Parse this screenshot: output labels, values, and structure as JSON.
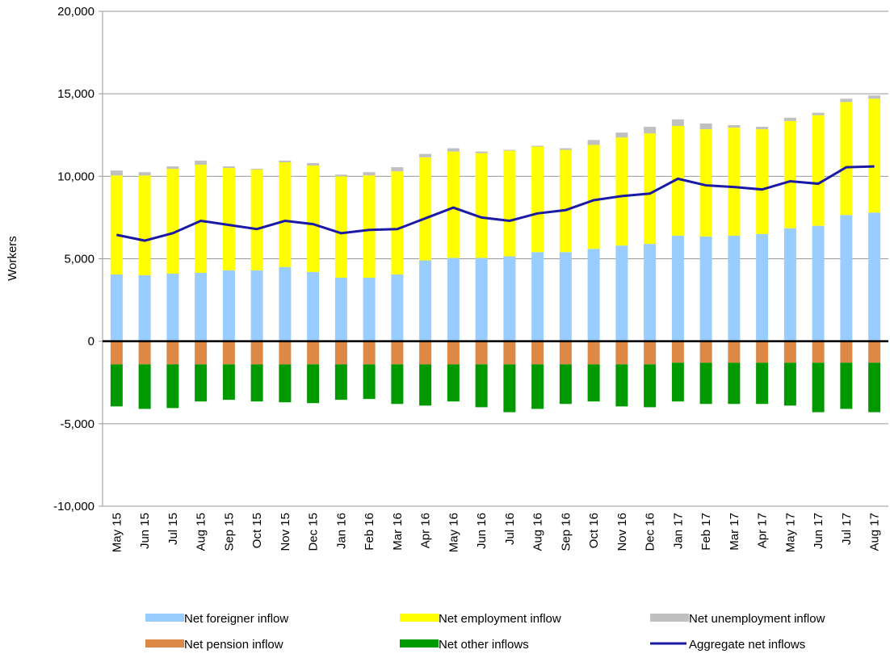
{
  "chart_data": {
    "type": "bar",
    "y_label": "Workers",
    "categories": [
      "May 15",
      "Jun 15",
      "Jul 15",
      "Aug 15",
      "Sep 15",
      "Oct 15",
      "Nov 15",
      "Dec 15",
      "Jan 16",
      "Feb 16",
      "Mar 16",
      "Apr 16",
      "May 16",
      "Jun 16",
      "Jul 16",
      "Aug 16",
      "Sep 16",
      "Oct 16",
      "Nov 16",
      "Dec 16",
      "Jan 17",
      "Feb 17",
      "Mar 17",
      "Apr 17",
      "May 17",
      "Jun 17",
      "Jul 17",
      "Aug 17"
    ],
    "series": [
      {
        "name": "Net foreigner inflow",
        "color": "#99ccff",
        "values": [
          4050,
          4000,
          4100,
          4150,
          4300,
          4300,
          4500,
          4200,
          3850,
          3850,
          4050,
          4900,
          5050,
          5050,
          5150,
          5400,
          5400,
          5600,
          5800,
          5900,
          6400,
          6350,
          6400,
          6500,
          6850,
          7000,
          7650,
          7800
        ]
      },
      {
        "name": "Net employment inflow",
        "color": "#ffff00",
        "values": [
          6000,
          6050,
          6350,
          6550,
          6200,
          6100,
          6350,
          6450,
          6150,
          6200,
          6250,
          6250,
          6450,
          6350,
          6400,
          6400,
          6200,
          6300,
          6550,
          6700,
          6650,
          6500,
          6550,
          6350,
          6500,
          6700,
          6850,
          6900
        ]
      },
      {
        "name": "Net unemployment inflow",
        "color": "#c0c0c0",
        "values": [
          300,
          200,
          150,
          250,
          100,
          50,
          100,
          150,
          100,
          200,
          250,
          200,
          200,
          100,
          50,
          50,
          100,
          300,
          300,
          400,
          400,
          350,
          150,
          150,
          200,
          150,
          200,
          200
        ]
      },
      {
        "name": "Net pension inflow",
        "color": "#dd8844",
        "values": [
          -1400,
          -1400,
          -1400,
          -1400,
          -1400,
          -1400,
          -1400,
          -1400,
          -1400,
          -1400,
          -1400,
          -1400,
          -1400,
          -1400,
          -1400,
          -1400,
          -1400,
          -1400,
          -1400,
          -1400,
          -1300,
          -1300,
          -1300,
          -1300,
          -1300,
          -1300,
          -1300,
          -1300
        ]
      },
      {
        "name": "Net other inflows",
        "color": "#009900",
        "values": [
          -2550,
          -2700,
          -2650,
          -2250,
          -2150,
          -2250,
          -2300,
          -2350,
          -2150,
          -2100,
          -2400,
          -2500,
          -2250,
          -2600,
          -2900,
          -2700,
          -2400,
          -2250,
          -2550,
          -2600,
          -2350,
          -2500,
          -2500,
          -2500,
          -2600,
          -3000,
          -2800,
          -3000
        ]
      },
      {
        "name": "Aggregate net inflows",
        "color": "#1a1aa6",
        "type": "line",
        "values": [
          6450,
          6100,
          6550,
          7300,
          7050,
          6800,
          7300,
          7100,
          6550,
          6750,
          6800,
          7450,
          8100,
          7500,
          7300,
          7750,
          7950,
          8550,
          8800,
          8950,
          9850,
          9450,
          9350,
          9200,
          9700,
          9550,
          10550,
          10600
        ]
      }
    ],
    "ylim": [
      -10000,
      20000
    ],
    "yticks": [
      {
        "value": -10000,
        "label": "-10,000"
      },
      {
        "value": -5000,
        "label": "-5,000"
      },
      0,
      {
        "value": 5000,
        "label": "5,000"
      },
      {
        "value": 10000,
        "label": "10,000"
      },
      {
        "value": 15000,
        "label": "15,000"
      },
      {
        "value": 20000,
        "label": "20,000"
      }
    ],
    "grid": true
  }
}
